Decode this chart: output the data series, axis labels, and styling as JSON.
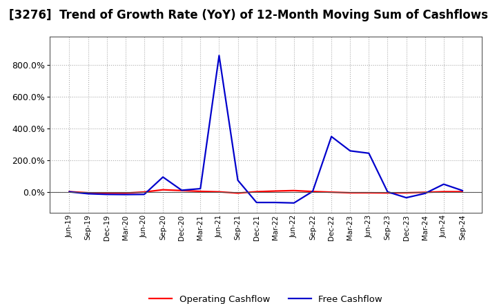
{
  "title": "[3276]  Trend of Growth Rate (YoY) of 12-Month Moving Sum of Cashflows",
  "x_labels": [
    "Jun-19",
    "Sep-19",
    "Dec-19",
    "Mar-20",
    "Jun-20",
    "Sep-20",
    "Dec-20",
    "Mar-21",
    "Jun-21",
    "Sep-21",
    "Dec-21",
    "Mar-22",
    "Jun-22",
    "Sep-22",
    "Dec-22",
    "Mar-23",
    "Jun-23",
    "Sep-23",
    "Dec-23",
    "Mar-24",
    "Jun-24",
    "Sep-24"
  ],
  "op_cf": [
    0.03,
    -0.04,
    -0.06,
    -0.06,
    0.01,
    0.15,
    0.1,
    0.05,
    0.02,
    -0.06,
    0.03,
    0.07,
    0.1,
    0.04,
    0.0,
    -0.04,
    -0.04,
    -0.05,
    -0.04,
    -0.01,
    0.03,
    0.03
  ],
  "free_cf": [
    0.02,
    -0.1,
    -0.14,
    -0.15,
    -0.14,
    0.95,
    0.12,
    0.22,
    8.6,
    0.75,
    -0.65,
    -0.65,
    -0.68,
    0.05,
    3.5,
    2.6,
    2.45,
    0.02,
    -0.35,
    -0.08,
    0.5,
    0.1
  ],
  "op_color": "#ff0000",
  "free_color": "#0000cc",
  "background_color": "#ffffff",
  "title_fontsize": 12,
  "legend_labels": [
    "Operating Cashflow",
    "Free Cashflow"
  ],
  "ytick_vals": [
    0.0,
    2.0,
    4.0,
    6.0,
    8.0
  ],
  "ytick_labels": [
    "0.0%",
    "200.0%",
    "400.0%",
    "600.0%",
    "800.0%"
  ],
  "ylim_min": -1.3,
  "ylim_max": 9.8
}
